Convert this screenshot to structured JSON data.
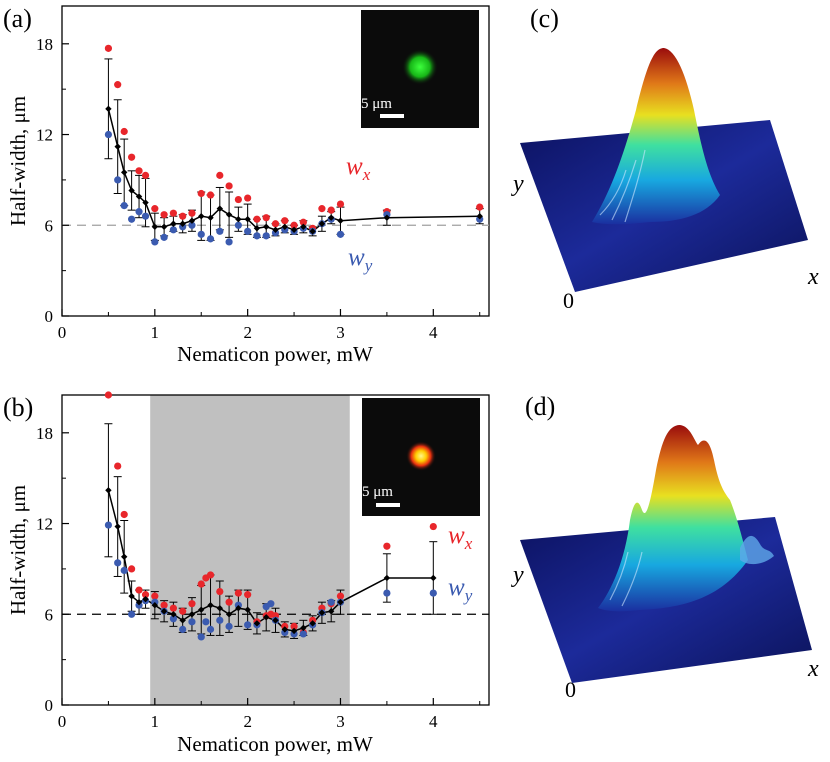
{
  "colors": {
    "wx": "#e8262b",
    "wy": "#3b5bb0",
    "mean": "#000000",
    "shade": "#c0c0c0",
    "dash_a": "#a0a0a0",
    "dash_b": "#000000"
  },
  "chart_data": [
    {
      "type": "scatter",
      "panel_label": "(a)",
      "xlabel": "Nematicon power, mW",
      "ylabel": "Half-width, μm",
      "xlim": [
        0,
        4.6
      ],
      "ylim": [
        0,
        20.5
      ],
      "xticks": [
        0,
        1,
        2,
        3,
        4
      ],
      "xtick_labels": [
        "0",
        "1",
        "2",
        "3",
        "4"
      ],
      "yticks": [
        0,
        6,
        12,
        18
      ],
      "ytick_labels": [
        "0",
        "6",
        "12",
        "18"
      ],
      "reference_line": 6,
      "shaded_region": null,
      "inset": {
        "scale_label": "5 μm",
        "color": "green"
      },
      "series_labels": {
        "wx": "w",
        "wx_sub": "x",
        "wy": "w",
        "wy_sub": "y"
      },
      "series": [
        {
          "name": "wx",
          "x": [
            0.5,
            0.6,
            0.67,
            0.75,
            0.83,
            0.9,
            1.0,
            1.1,
            1.2,
            1.3,
            1.4,
            1.5,
            1.6,
            1.7,
            1.8,
            1.9,
            2.0,
            2.1,
            2.2,
            2.3,
            2.4,
            2.5,
            2.6,
            2.7,
            2.8,
            2.9,
            3.0,
            3.5,
            4.5
          ],
          "y": [
            17.7,
            15.3,
            12.2,
            10.5,
            9.6,
            9.3,
            7.1,
            6.7,
            6.8,
            6.6,
            6.8,
            8.1,
            8.0,
            9.3,
            8.6,
            7.7,
            7.8,
            6.4,
            6.5,
            6.1,
            6.3,
            6.0,
            6.2,
            5.8,
            7.1,
            7.0,
            7.4,
            6.9,
            7.2
          ]
        },
        {
          "name": "wy",
          "x": [
            0.5,
            0.6,
            0.67,
            0.75,
            0.83,
            0.9,
            1.0,
            1.1,
            1.2,
            1.3,
            1.4,
            1.5,
            1.6,
            1.7,
            1.8,
            1.9,
            2.0,
            2.1,
            2.2,
            2.3,
            2.4,
            2.5,
            2.6,
            2.7,
            2.8,
            2.9,
            3.0,
            3.5,
            4.5
          ],
          "y": [
            12.0,
            9.0,
            7.3,
            6.4,
            6.9,
            6.6,
            4.9,
            5.2,
            5.7,
            5.9,
            6.0,
            5.4,
            5.1,
            5.6,
            4.9,
            6.0,
            5.6,
            5.3,
            5.3,
            5.5,
            5.7,
            5.6,
            5.8,
            5.6,
            6.1,
            6.4,
            5.4,
            6.7,
            6.4
          ]
        },
        {
          "name": "mean",
          "x": [
            0.5,
            0.6,
            0.67,
            0.75,
            0.83,
            0.9,
            1.0,
            1.1,
            1.2,
            1.3,
            1.4,
            1.5,
            1.6,
            1.7,
            1.8,
            1.9,
            2.0,
            2.1,
            2.2,
            2.3,
            2.4,
            2.5,
            2.6,
            2.7,
            2.8,
            2.9,
            3.0,
            3.5,
            4.5
          ],
          "y": [
            13.7,
            11.2,
            9.5,
            8.3,
            7.9,
            7.5,
            5.9,
            5.9,
            6.1,
            6.1,
            6.3,
            6.6,
            6.5,
            7.1,
            6.7,
            6.4,
            6.4,
            5.8,
            5.9,
            5.7,
            5.9,
            5.7,
            5.9,
            5.6,
            6.1,
            6.5,
            6.3,
            6.5,
            6.6
          ],
          "err": [
            3.3,
            3.1,
            2.2,
            1.3,
            1.4,
            1.6,
            0.9,
            0.6,
            0.5,
            0.6,
            0.7,
            1.6,
            1.5,
            1.4,
            1.5,
            0.8,
            1.0,
            0.6,
            0.7,
            0.4,
            0.4,
            0.3,
            0.4,
            0.3,
            0.5,
            0.4,
            0.9,
            0.5,
            0.5
          ]
        }
      ]
    },
    {
      "type": "scatter",
      "panel_label": "(b)",
      "xlabel": "Nematicon power, mW",
      "ylabel": "Half-width, μm",
      "xlim": [
        0,
        4.6
      ],
      "ylim": [
        0,
        20.5
      ],
      "xticks": [
        0,
        1,
        2,
        3,
        4
      ],
      "xtick_labels": [
        "0",
        "1",
        "2",
        "3",
        "4"
      ],
      "yticks": [
        0,
        6,
        12,
        18
      ],
      "ytick_labels": [
        "0",
        "6",
        "12",
        "18"
      ],
      "reference_line": 6,
      "shaded_region": [
        0.95,
        3.1
      ],
      "inset": {
        "scale_label": "5 μm",
        "color": "red"
      },
      "series_labels": {
        "wx": "w",
        "wx_sub": "x",
        "wy": "w",
        "wy_sub": "y"
      },
      "series": [
        {
          "name": "wx",
          "x": [
            0.5,
            0.6,
            0.67,
            0.75,
            0.83,
            0.9,
            1.0,
            1.1,
            1.2,
            1.3,
            1.4,
            1.5,
            1.55,
            1.6,
            1.7,
            1.8,
            1.9,
            2.0,
            2.1,
            2.2,
            2.25,
            2.3,
            2.4,
            2.5,
            2.6,
            2.7,
            2.8,
            2.9,
            3.0,
            3.5,
            4.0
          ],
          "y": [
            20.5,
            15.8,
            12.6,
            9.0,
            7.6,
            7.3,
            7.2,
            6.6,
            6.4,
            6.2,
            6.7,
            8.0,
            8.4,
            8.6,
            7.5,
            6.8,
            7.4,
            7.3,
            5.5,
            5.9,
            6.0,
            5.9,
            5.2,
            5.2,
            4.8,
            5.6,
            6.4,
            6.7,
            7.2,
            10.5,
            11.8
          ]
        },
        {
          "name": "wy",
          "x": [
            0.5,
            0.6,
            0.67,
            0.75,
            0.83,
            0.9,
            1.0,
            1.1,
            1.2,
            1.3,
            1.4,
            1.5,
            1.55,
            1.6,
            1.7,
            1.8,
            1.9,
            2.0,
            2.1,
            2.2,
            2.25,
            2.3,
            2.4,
            2.5,
            2.6,
            2.7,
            2.8,
            2.9,
            3.0,
            3.5,
            4.0
          ],
          "y": [
            11.9,
            9.4,
            8.9,
            6.0,
            6.6,
            6.9,
            6.8,
            6.2,
            5.7,
            5.0,
            5.5,
            4.5,
            5.5,
            5.0,
            5.6,
            5.2,
            6.6,
            5.3,
            5.3,
            6.5,
            6.7,
            5.6,
            4.8,
            4.7,
            4.7,
            5.3,
            6.1,
            6.8,
            6.8,
            7.4,
            7.4
          ]
        },
        {
          "name": "mean",
          "x": [
            0.5,
            0.6,
            0.67,
            0.75,
            0.83,
            0.9,
            1.0,
            1.1,
            1.2,
            1.3,
            1.4,
            1.5,
            1.6,
            1.7,
            1.8,
            1.9,
            2.0,
            2.1,
            2.2,
            2.3,
            2.4,
            2.5,
            2.6,
            2.7,
            2.8,
            2.9,
            3.0,
            3.5,
            4.0
          ],
          "y": [
            14.2,
            11.8,
            9.8,
            7.2,
            6.8,
            7.0,
            6.6,
            6.2,
            6.0,
            5.6,
            6.0,
            6.3,
            6.6,
            6.4,
            6.0,
            6.4,
            6.3,
            5.4,
            5.8,
            5.6,
            5.0,
            4.9,
            5.1,
            5.4,
            6.1,
            6.2,
            6.8,
            8.4,
            8.4
          ],
          "err": [
            4.4,
            3.3,
            2.4,
            1.0,
            0.8,
            0.6,
            0.9,
            0.7,
            0.8,
            0.8,
            1.1,
            1.6,
            2.0,
            1.8,
            1.2,
            1.2,
            1.3,
            0.7,
            0.9,
            0.8,
            0.5,
            0.5,
            0.5,
            0.5,
            0.7,
            0.7,
            0.8,
            1.6,
            2.4
          ]
        }
      ]
    }
  ],
  "surfaces": [
    {
      "panel_label": "(c)",
      "x_label": "x",
      "y_label": "y",
      "origin_label": "0"
    },
    {
      "panel_label": "(d)",
      "x_label": "x",
      "y_label": "y",
      "origin_label": "0"
    }
  ]
}
